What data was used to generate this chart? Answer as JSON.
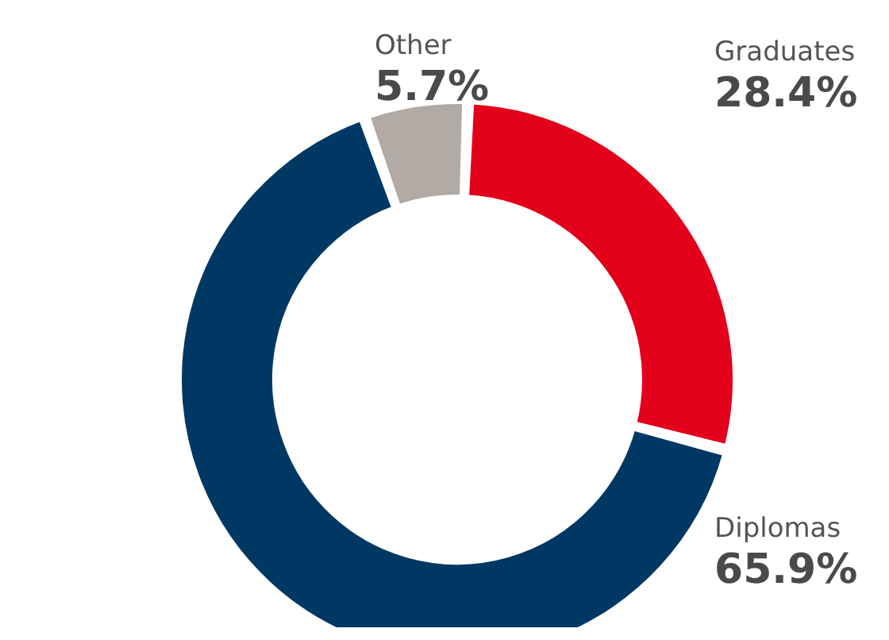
{
  "chart_data": {
    "type": "donut",
    "categories": [
      "Graduates",
      "Diplomas",
      "Other"
    ],
    "values": [
      28.4,
      65.9,
      5.7
    ],
    "colors": [
      "#e2001a",
      "#003864",
      "#b2aaa5"
    ],
    "value_labels": [
      "28.4%",
      "65.9%",
      "5.7%"
    ]
  }
}
